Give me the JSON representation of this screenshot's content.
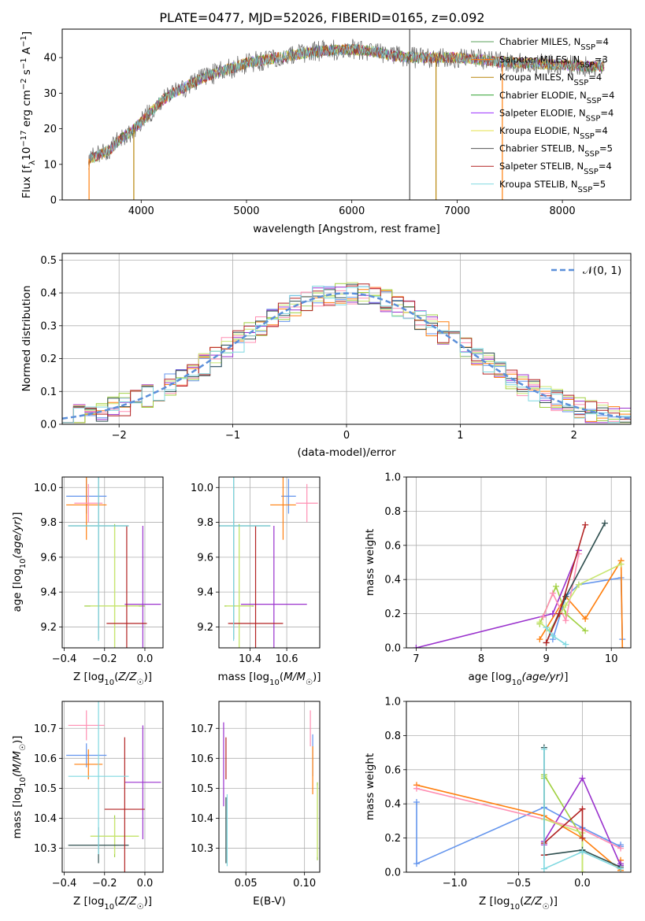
{
  "colors": {
    "frame": "#000000",
    "grid": "#b0b0b0",
    "spectrum_palette": [
      "#5aa05a",
      "#ff7f0e",
      "#b8860b",
      "#2ca02c",
      "#9b30ff",
      "#e6e24a",
      "#555555",
      "#b22222",
      "#7fd8e0"
    ],
    "fit_palette": [
      "#6495ed",
      "#ff7f0e",
      "#a0d040",
      "#9a32cd",
      "#ff8fb3",
      "#c8e66e",
      "#2f4f4f",
      "#b22222",
      "#7fd8e0"
    ]
  },
  "chart_data": [
    {
      "id": "spectrum",
      "type": "line",
      "title": "PLATE=0477, MJD=52026, FIBERID=0165, z=0.092",
      "xlabel": "wavelength [Angstrom, rest frame]",
      "ylabel_parts": {
        "pre": "Flux [f",
        "lambda": "λ",
        "mid": "10",
        "exp1": "−17",
        "post": " erg cm",
        "exp2": "−2",
        "s": " s",
        "exp3": "−1",
        "A": " A",
        "exp4": "−1",
        "close": "]"
      },
      "xlim": [
        3250,
        8650
      ],
      "ylim": [
        0,
        48
      ],
      "xticks": [
        4000,
        5000,
        6000,
        7000,
        8000
      ],
      "yticks": [
        0,
        10,
        20,
        30,
        40
      ],
      "grid": false,
      "legend_placement": "top-right",
      "legend": [
        {
          "label": "Chabrier MILES, N",
          "sub": "SSP",
          "suffix": "=4"
        },
        {
          "label": "Salpeter MILES, N",
          "sub": "SSP",
          "suffix": "=3"
        },
        {
          "label": "Kroupa MILES, N",
          "sub": "SSP",
          "suffix": "=4"
        },
        {
          "label": "Chabrier ELODIE, N",
          "sub": "SSP",
          "suffix": "=4"
        },
        {
          "label": "Salpeter ELODIE, N",
          "sub": "SSP",
          "suffix": "=4"
        },
        {
          "label": "Kroupa ELODIE, N",
          "sub": "SSP",
          "suffix": "=4"
        },
        {
          "label": "Chabrier STELIB, N",
          "sub": "SSP",
          "suffix": "=5"
        },
        {
          "label": "Salpeter STELIB, N",
          "sub": "SSP",
          "suffix": "=4"
        },
        {
          "label": "Kroupa STELIB, N",
          "sub": "SSP",
          "suffix": "=5"
        }
      ],
      "continuum": {
        "x": [
          3500,
          3600,
          3700,
          3800,
          3900,
          4000,
          4100,
          4200,
          4300,
          4400,
          4500,
          4600,
          4700,
          4800,
          4900,
          5000,
          5200,
          5400,
          5600,
          5800,
          6000,
          6200,
          6400,
          6600,
          6800,
          7000,
          7200,
          7400,
          7600,
          7800,
          8000,
          8200,
          8400
        ],
        "y": [
          11.5,
          12.5,
          14,
          17,
          19,
          22,
          25,
          28,
          30,
          31.5,
          33,
          34.5,
          35.5,
          36.5,
          37.5,
          38.5,
          39.5,
          40.5,
          41.5,
          42,
          42.3,
          41.8,
          40.5,
          40,
          40,
          40,
          39.5,
          38.8,
          38.5,
          38.2,
          38,
          37.5,
          37.5
        ]
      },
      "spikes_x": [
        3505,
        3930,
        6800,
        7430,
        6550
      ]
    },
    {
      "id": "residual_hist",
      "type": "bar",
      "xlabel": "(data-model)/error",
      "ylabel": "Normed distribution",
      "xlim": [
        -2.5,
        2.5
      ],
      "ylim": [
        0,
        0.52
      ],
      "xticks": [
        -2,
        -1,
        0,
        1,
        2
      ],
      "yticks": [
        0.0,
        0.1,
        0.2,
        0.3,
        0.4,
        0.5
      ],
      "ytick_labels": [
        "0.0",
        "0.1",
        "0.2",
        "0.3",
        "0.4",
        "0.5"
      ],
      "xtick_labels": [
        "−2",
        "−1",
        "0",
        "1",
        "2"
      ],
      "grid": true,
      "legend_placement": "top-right",
      "legend": [
        {
          "label": "𝒩(0, 1)"
        }
      ],
      "gaussian": {
        "mean": 0,
        "sigma": 1,
        "style": "dashed",
        "color": "#5b8fd9"
      }
    },
    {
      "id": "age_vs_Z",
      "type": "scatter",
      "xlabel": "Z [log10(Z/Z☉)]",
      "xlabel_parts": {
        "pre": "Z [log",
        "sub": "10",
        "mid": "(",
        "var": "Z/Z",
        "sun": "☉",
        "close": ")]"
      },
      "ylabel_parts": {
        "pre": "age  [log",
        "sub": "10",
        "var": "(age/yr)",
        "close": "]"
      },
      "xlim": [
        -0.41,
        0.09
      ],
      "ylim": [
        9.08,
        10.06
      ],
      "xticks": [
        -0.4,
        -0.2,
        0.0
      ],
      "xtick_labels": [
        "−0.4",
        "−0.2",
        "0.0"
      ],
      "yticks": [
        9.2,
        9.4,
        9.6,
        9.8,
        10.0
      ],
      "ytick_labels": [
        "9.2",
        "9.4",
        "9.6",
        "9.8",
        "10.0"
      ],
      "grid": true,
      "points": [
        {
          "x": -0.29,
          "y": 9.95,
          "xerr": 0.1,
          "yerr": 0.1
        },
        {
          "x": -0.29,
          "y": 9.9,
          "xerr": 0.1,
          "yerr": 0.2
        },
        {
          "x": -0.15,
          "y": 9.32,
          "xerr": 0.15,
          "yerr": 0.47
        },
        {
          "x": -0.01,
          "y": 9.33,
          "xerr": 0.09,
          "yerr": 0.45
        },
        {
          "x": -0.28,
          "y": 9.91,
          "xerr": 0.07,
          "yerr": 0.11
        },
        {
          "x": -0.15,
          "y": 9.32,
          "xerr": 0.12,
          "yerr": 0.46
        },
        {
          "x": -0.23,
          "y": 9.78,
          "xerr": 0.15,
          "yerr": 0.65
        },
        {
          "x": -0.09,
          "y": 9.22,
          "xerr": 0.1,
          "yerr": 0.56
        },
        {
          "x": -0.23,
          "y": 9.78,
          "xerr": 0.15,
          "yerr": 0.66
        }
      ]
    },
    {
      "id": "age_vs_mass",
      "type": "scatter",
      "xlabel_parts": {
        "pre": "mass [log",
        "sub": "10",
        "mid": "(",
        "var": "M/M",
        "sun": "☉",
        "close": ")]"
      },
      "xlim": [
        10.23,
        10.78
      ],
      "ylim": [
        9.08,
        10.06
      ],
      "xticks": [
        10.4,
        10.6
      ],
      "xtick_labels": [
        "10.4",
        "10.6"
      ],
      "yticks": [
        9.2,
        9.4,
        9.6,
        9.8,
        10.0
      ],
      "ytick_labels": [
        "9.2",
        "9.4",
        "9.6",
        "9.8",
        "10.0"
      ],
      "grid": true,
      "points": [
        {
          "x": 10.61,
          "y": 9.95,
          "xerr": 0.04,
          "yerr": 0.1
        },
        {
          "x": 10.58,
          "y": 9.9,
          "xerr": 0.07,
          "yerr": 0.2
        },
        {
          "x": 10.34,
          "y": 9.32,
          "xerr": 0.08,
          "yerr": 0.47
        },
        {
          "x": 10.53,
          "y": 9.33,
          "xerr": 0.18,
          "yerr": 0.45
        },
        {
          "x": 10.71,
          "y": 9.91,
          "xerr": 0.06,
          "yerr": 0.11
        },
        {
          "x": 10.34,
          "y": 9.32,
          "xerr": 0.07,
          "yerr": 0.46
        },
        {
          "x": 10.31,
          "y": 9.78,
          "xerr": 0.2,
          "yerr": 0.65
        },
        {
          "x": 10.43,
          "y": 9.22,
          "xerr": 0.15,
          "yerr": 0.56
        },
        {
          "x": 10.31,
          "y": 9.78,
          "xerr": 0.2,
          "yerr": 0.66
        }
      ]
    },
    {
      "id": "weight_vs_age",
      "type": "line",
      "ylabel": "mass weight",
      "xlabel_parts": {
        "pre": "age  [log",
        "sub": "10",
        "var": "(age/yr)",
        "close": "]"
      },
      "xlim": [
        6.85,
        10.3
      ],
      "ylim": [
        0,
        1.0
      ],
      "xticks": [
        7,
        8,
        9,
        10
      ],
      "xtick_labels": [
        "7",
        "8",
        "9",
        "10"
      ],
      "yticks": [
        0.0,
        0.2,
        0.4,
        0.6,
        0.8,
        1.0
      ],
      "ytick_labels": [
        "0.0",
        "0.2",
        "0.4",
        "0.6",
        "0.8",
        "1.0"
      ],
      "grid": true,
      "series": [
        {
          "x": [
            9.1,
            9.3,
            9.5,
            10.15,
            10.17
          ],
          "y": [
            0.05,
            0.3,
            0.37,
            0.41,
            0.05
          ]
        },
        {
          "x": [
            8.9,
            9.3,
            9.6,
            10.15,
            10.17
          ],
          "y": [
            0.05,
            0.3,
            0.17,
            0.51,
            0.0
          ]
        },
        {
          "x": [
            8.9,
            9.15,
            9.3,
            9.6
          ],
          "y": [
            0.14,
            0.36,
            0.2,
            0.1
          ]
        },
        {
          "x": [
            7.0,
            9.1,
            9.5
          ],
          "y": [
            0.0,
            0.2,
            0.57
          ]
        },
        {
          "x": [
            8.95,
            9.1,
            9.3,
            9.5
          ],
          "y": [
            0.18,
            0.32,
            0.16,
            0.55
          ]
        },
        {
          "x": [
            8.9,
            9.05,
            9.3,
            9.5,
            10.15
          ],
          "y": [
            0.15,
            0.1,
            0.25,
            0.37,
            0.49
          ]
        },
        {
          "x": [
            9.0,
            9.3,
            9.9
          ],
          "y": [
            0.03,
            0.3,
            0.73
          ]
        },
        {
          "x": [
            9.0,
            9.2,
            9.6
          ],
          "y": [
            0.03,
            0.2,
            0.72
          ]
        },
        {
          "x": [
            9.0,
            9.1,
            9.3
          ],
          "y": [
            0.12,
            0.07,
            0.02
          ]
        }
      ]
    },
    {
      "id": "mass_vs_Z",
      "type": "scatter",
      "xlabel_parts": {
        "pre": "Z [log",
        "sub": "10",
        "mid": "(",
        "var": "Z/Z",
        "sun": "☉",
        "close": ")]"
      },
      "ylabel_parts": {
        "pre": "mass [log",
        "sub": "10",
        "var": "(M/M",
        "sun": "☉",
        "close": ")]"
      },
      "xlim": [
        -0.41,
        0.09
      ],
      "ylim": [
        10.22,
        10.79
      ],
      "xticks": [
        -0.4,
        -0.2,
        0.0
      ],
      "xtick_labels": [
        "−0.4",
        "−0.2",
        "0.0"
      ],
      "yticks": [
        10.3,
        10.4,
        10.5,
        10.6,
        10.7
      ],
      "ytick_labels": [
        "10.3",
        "10.4",
        "10.5",
        "10.6",
        "10.7"
      ],
      "grid": true,
      "points": [
        {
          "x": -0.29,
          "y": 10.61,
          "xerr": 0.1,
          "yerr": 0.04
        },
        {
          "x": -0.28,
          "y": 10.58,
          "xerr": 0.07,
          "yerr": 0.05
        },
        {
          "x": -0.15,
          "y": 10.34,
          "xerr": 0.12,
          "yerr": 0.07
        },
        {
          "x": -0.01,
          "y": 10.52,
          "xerr": 0.09,
          "yerr": 0.19
        },
        {
          "x": -0.29,
          "y": 10.71,
          "xerr": 0.09,
          "yerr": 0.05
        },
        {
          "x": -0.15,
          "y": 10.34,
          "xerr": 0.12,
          "yerr": 0.06
        },
        {
          "x": -0.23,
          "y": 10.31,
          "xerr": 0.15,
          "yerr": 0.06
        },
        {
          "x": -0.1,
          "y": 10.43,
          "xerr": 0.1,
          "yerr": 0.24
        },
        {
          "x": -0.23,
          "y": 10.54,
          "xerr": 0.15,
          "yerr": 0.26
        }
      ]
    },
    {
      "id": "mass_vs_ebv",
      "type": "scatter",
      "xlabel": "E(B-V)",
      "xlim": [
        0.027,
        0.113
      ],
      "ylim": [
        10.22,
        10.79
      ],
      "xticks": [
        0.05,
        0.1
      ],
      "xtick_labels": [
        "0.05",
        "0.10"
      ],
      "yticks": [
        10.3,
        10.4,
        10.5,
        10.6,
        10.7
      ],
      "ytick_labels": [
        "10.3",
        "10.4",
        "10.5",
        "10.6",
        "10.7"
      ],
      "grid": true,
      "points": [
        {
          "x": 0.107,
          "y": 10.61,
          "xerr": 0.0,
          "yerr": 0.07
        },
        {
          "x": 0.107,
          "y": 10.56,
          "xerr": 0.0,
          "yerr": 0.08
        },
        {
          "x": 0.111,
          "y": 10.39,
          "xerr": 0.0,
          "yerr": 0.13
        },
        {
          "x": 0.031,
          "y": 10.58,
          "xerr": 0.0,
          "yerr": 0.14
        },
        {
          "x": 0.105,
          "y": 10.7,
          "xerr": 0.0,
          "yerr": 0.06
        },
        {
          "x": 0.111,
          "y": 10.39,
          "xerr": 0.0,
          "yerr": 0.12
        },
        {
          "x": 0.033,
          "y": 10.36,
          "xerr": 0.0,
          "yerr": 0.11
        },
        {
          "x": 0.033,
          "y": 10.6,
          "xerr": 0.0,
          "yerr": 0.07
        },
        {
          "x": 0.034,
          "y": 10.36,
          "xerr": 0.0,
          "yerr": 0.12
        }
      ]
    },
    {
      "id": "weight_vs_Z",
      "type": "line",
      "ylabel": "mass weight",
      "xlabel_parts": {
        "pre": "Z [log",
        "sub": "10",
        "mid": "(",
        "var": "Z/Z",
        "sun": "☉",
        "close": ")]"
      },
      "xlim": [
        -1.38,
        0.38
      ],
      "ylim": [
        0,
        1.0
      ],
      "xticks": [
        -1.0,
        -0.5,
        0.0
      ],
      "xtick_labels": [
        "−1.0",
        "−0.5",
        "0.0"
      ],
      "yticks": [
        0.0,
        0.2,
        0.4,
        0.6,
        0.8,
        1.0
      ],
      "ytick_labels": [
        "0.0",
        "0.2",
        "0.4",
        "0.6",
        "0.8",
        "1.0"
      ],
      "grid": true,
      "series": [
        {
          "x": [
            -1.3,
            -1.3,
            -0.3,
            0.0,
            0.3,
            0.3
          ],
          "y": [
            0.41,
            0.05,
            0.38,
            0.26,
            0.15,
            0.16
          ]
        },
        {
          "x": [
            -1.3,
            -0.3,
            0.0,
            0.3,
            0.3
          ],
          "y": [
            0.51,
            0.33,
            0.2,
            0.01,
            0.07
          ]
        },
        {
          "x": [
            -0.3,
            -0.3,
            0.0,
            0.0
          ],
          "y": [
            0.55,
            0.57,
            0.2,
            0.0
          ]
        },
        {
          "x": [
            -0.3,
            -0.3,
            0.0,
            0.3,
            0.3
          ],
          "y": [
            0.16,
            0.18,
            0.55,
            0.04,
            0.05
          ]
        },
        {
          "x": [
            -1.3,
            -0.3,
            0.0,
            0.3
          ],
          "y": [
            0.49,
            0.31,
            0.25,
            0.14
          ]
        },
        {
          "x": [
            -0.3,
            -0.3,
            0.0,
            0.0
          ],
          "y": [
            0.56,
            0.31,
            0.23,
            0.0
          ]
        },
        {
          "x": [
            -0.3,
            -0.3,
            0.0,
            0.3
          ],
          "y": [
            0.73,
            0.1,
            0.13,
            0.03
          ]
        },
        {
          "x": [
            -0.3,
            -0.3,
            0.0,
            0.0
          ],
          "y": [
            0.1,
            0.17,
            0.37,
            0.2
          ]
        },
        {
          "x": [
            -0.3,
            -0.3,
            0.0,
            0.3
          ],
          "y": [
            0.72,
            0.02,
            0.12,
            0.02
          ]
        }
      ]
    }
  ]
}
